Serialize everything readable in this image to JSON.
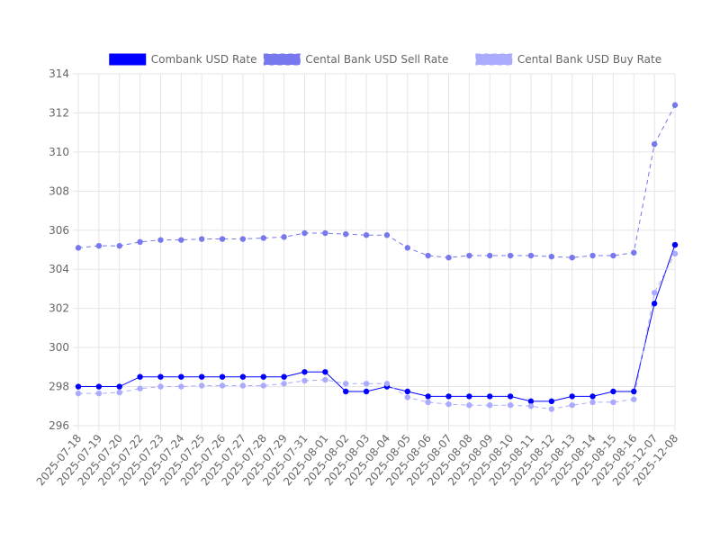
{
  "chart_data": {
    "type": "line",
    "categories": [
      "2025-07-18",
      "2025-07-19",
      "2025-07-20",
      "2025-07-22",
      "2025-07-23",
      "2025-07-24",
      "2025-07-25",
      "2025-07-26",
      "2025-07-27",
      "2025-07-28",
      "2025-07-29",
      "2025-07-31",
      "2025-08-01",
      "2025-08-02",
      "2025-08-03",
      "2025-08-04",
      "2025-08-05",
      "2025-08-06",
      "2025-08-07",
      "2025-08-08",
      "2025-08-09",
      "2025-08-10",
      "2025-08-11",
      "2025-08-12",
      "2025-08-13",
      "2025-08-14",
      "2025-08-15",
      "2025-08-16",
      "2025-12-07",
      "2025-12-08"
    ],
    "ylim": [
      296,
      314
    ],
    "yticks": [
      296,
      298,
      300,
      302,
      304,
      306,
      308,
      310,
      312,
      314
    ],
    "grid": true,
    "legend_position": "top-center",
    "series": [
      {
        "name": "Combank USD Rate",
        "color": "#0000ff",
        "dashed": false,
        "values": [
          298,
          298,
          298,
          298.5,
          298.5,
          298.5,
          298.5,
          298.5,
          298.5,
          298.5,
          298.5,
          298.75,
          298.75,
          297.75,
          297.75,
          298,
          297.75,
          297.5,
          297.5,
          297.5,
          297.5,
          297.5,
          297.25,
          297.25,
          297.5,
          297.5,
          297.75,
          297.75,
          302.25,
          305.25
        ]
      },
      {
        "name": "Cental Bank USD Sell Rate",
        "color": "#7777ee",
        "dashed": true,
        "values": [
          305.1,
          305.2,
          305.2,
          305.4,
          305.5,
          305.5,
          305.55,
          305.55,
          305.55,
          305.6,
          305.65,
          305.85,
          305.85,
          305.8,
          305.75,
          305.75,
          305.1,
          304.7,
          304.6,
          304.7,
          304.7,
          304.7,
          304.7,
          304.65,
          304.6,
          304.7,
          304.7,
          304.85,
          310.4,
          312.4
        ]
      },
      {
        "name": "Cental Bank USD Buy Rate",
        "color": "#aaaaff",
        "dashed": true,
        "values": [
          297.65,
          297.65,
          297.7,
          297.9,
          298,
          298,
          298.05,
          298.05,
          298.05,
          298.05,
          298.15,
          298.3,
          298.35,
          298.15,
          298.15,
          298.15,
          297.45,
          297.2,
          297.1,
          297.05,
          297.05,
          297.05,
          297,
          296.85,
          297.05,
          297.2,
          297.2,
          297.35,
          302.8,
          304.8
        ]
      }
    ]
  }
}
